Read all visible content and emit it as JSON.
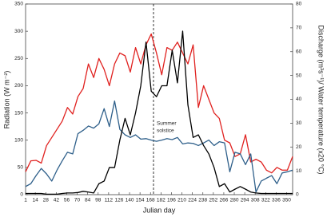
{
  "chart_data": {
    "type": "line",
    "ylabel": "Radiation (W m⁻²)",
    "y2label": "Discharge (m³s⁻¹)/ Water temperature (x20 °C)",
    "xlabel": "Julian day",
    "x": [
      1,
      8,
      15,
      22,
      29,
      36,
      43,
      50,
      57,
      64,
      71,
      78,
      85,
      92,
      99,
      106,
      113,
      120,
      127,
      134,
      141,
      148,
      155,
      162,
      169,
      176,
      183,
      190,
      197,
      204,
      211,
      218,
      225,
      232,
      239,
      246,
      253,
      260,
      267,
      274,
      281,
      288,
      295,
      302,
      309,
      316,
      323,
      330,
      337,
      344,
      351,
      358
    ],
    "xlim": [
      1,
      358
    ],
    "xticks": [
      1,
      14,
      28,
      42,
      56,
      70,
      84,
      98,
      112,
      126,
      140,
      154,
      168,
      182,
      196,
      210,
      224,
      238,
      252,
      266,
      280,
      294,
      308,
      322,
      336,
      350
    ],
    "ylim": [
      0,
      350
    ],
    "yticks": [
      0,
      50,
      100,
      150,
      200,
      250,
      300,
      350
    ],
    "y2lim": [
      0,
      80
    ],
    "y2ticks": [
      0,
      10,
      20,
      30,
      40,
      50,
      60,
      70,
      80
    ],
    "annotation": {
      "lines": [
        "Summer",
        "solstice"
      ],
      "x": 172
    },
    "series": [
      {
        "color": "#e0211f",
        "values": [
          42,
          62,
          63,
          58,
          90,
          105,
          120,
          135,
          160,
          148,
          180,
          195,
          240,
          215,
          250,
          230,
          200,
          240,
          260,
          255,
          225,
          270,
          240,
          275,
          295,
          260,
          220,
          270,
          265,
          280,
          260,
          240,
          275,
          160,
          200,
          175,
          150,
          140,
          100,
          95,
          70,
          75,
          110,
          60,
          65,
          60,
          45,
          40,
          50,
          45,
          45,
          70
        ]
      },
      {
        "color": "#2e5f8a",
        "axis": "y2",
        "values": [
          3.4,
          4.6,
          8,
          11,
          8.7,
          5.7,
          10.3,
          14.2,
          17.8,
          17.1,
          25.6,
          27,
          28.8,
          27.9,
          29.7,
          36.1,
          28.6,
          39.3,
          27.4,
          25.1,
          24,
          25.1,
          23.3,
          23.5,
          22.9,
          22.4,
          22.9,
          23.5,
          23.1,
          24,
          21.3,
          21.7,
          21.5,
          20.6,
          21.7,
          22.9,
          20.6,
          22.2,
          21.7,
          9.6,
          17.8,
          17.1,
          12.6,
          17.1,
          1.1,
          5.7,
          6.9,
          8,
          4.6,
          9.1,
          9.6,
          10.3
        ]
      },
      {
        "color": "#000000",
        "axis": "y2",
        "values": [
          0.5,
          0.5,
          0.5,
          0.5,
          0.2,
          0.2,
          0.2,
          0.5,
          0.7,
          0.7,
          0.9,
          1.4,
          1.1,
          0.7,
          4.6,
          5.7,
          11.4,
          11.4,
          22.9,
          32,
          25.1,
          34.3,
          45.7,
          64,
          43.4,
          41.1,
          45.7,
          45.7,
          60.6,
          46.9,
          68.6,
          37.7,
          24,
          25.1,
          20.6,
          17.1,
          11.4,
          3.4,
          4.6,
          1.1,
          2.3,
          3.4,
          2.3,
          1.1,
          0.7,
          0.5,
          0.5,
          0.5,
          0.5,
          0.5,
          0.5,
          0.5
        ]
      }
    ]
  }
}
